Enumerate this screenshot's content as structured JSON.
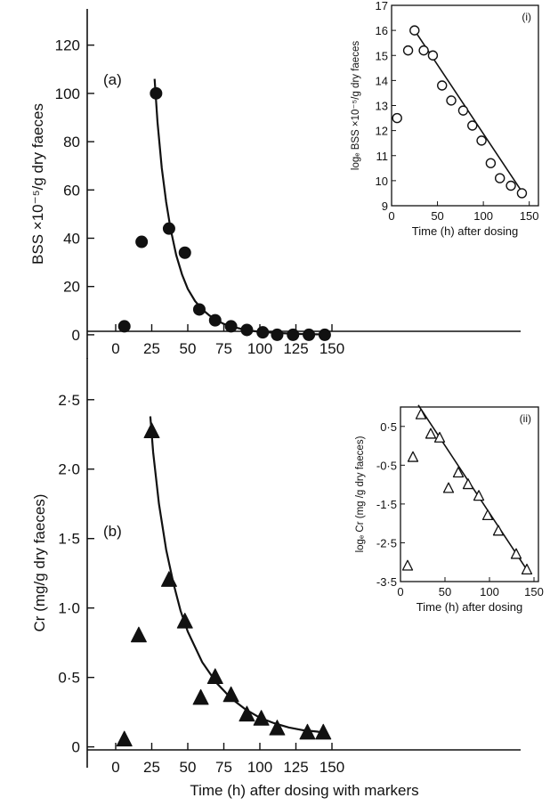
{
  "colors": {
    "ink": "#111111",
    "background": "#ffffff"
  },
  "xlabel": "Time (h) after dosing with markers",
  "chart_data": [
    {
      "id": "a",
      "panel_label": "(a)",
      "type": "scatter",
      "ylabel": "BSS ×10⁻⁵/g dry faeces",
      "xlim": [
        -10,
        155
      ],
      "ylim": [
        -10,
        135
      ],
      "xticks": [
        0,
        25,
        50,
        75,
        100,
        125,
        150
      ],
      "yticks": [
        0,
        20,
        40,
        60,
        80,
        100,
        120
      ],
      "marker": "filled-circle",
      "series": [
        {
          "x": [
            6,
            18,
            28,
            37,
            48,
            58,
            69,
            80,
            91,
            102,
            112,
            123,
            134,
            145
          ],
          "y": [
            3.5,
            38.5,
            100,
            44,
            34,
            10.5,
            6,
            3.5,
            2,
            1,
            0,
            0,
            0,
            0
          ]
        }
      ],
      "fit_curve": {
        "x": [
          27,
          29,
          32,
          35,
          38,
          42,
          46,
          50,
          55,
          60,
          65,
          70,
          75,
          80,
          90,
          100,
          110,
          120,
          130,
          140,
          148
        ],
        "y": [
          106,
          88,
          69,
          55,
          44,
          33,
          25,
          19,
          14,
          10.5,
          8,
          6,
          4.5,
          3.5,
          2,
          1.2,
          0.8,
          0.5,
          0.3,
          0.2,
          0.1
        ]
      }
    },
    {
      "id": "b",
      "panel_label": "(b)",
      "type": "scatter",
      "ylabel": "Cr (mg/g dry faeces)",
      "xlim": [
        -10,
        155
      ],
      "ylim": [
        -0.15,
        2.8
      ],
      "xticks": [
        0,
        25,
        50,
        75,
        100,
        125,
        150
      ],
      "yticks": [
        0,
        0.5,
        1.0,
        1.5,
        2.0,
        2.5
      ],
      "yticklabels": [
        "0",
        "0·5",
        "1·0",
        "1·5",
        "2·0",
        "2·5"
      ],
      "marker": "filled-triangle",
      "series": [
        {
          "x": [
            6,
            16,
            25,
            37,
            48,
            59,
            69,
            80,
            91,
            101,
            112,
            133,
            144
          ],
          "y": [
            0.05,
            0.8,
            2.27,
            1.2,
            0.9,
            0.35,
            0.5,
            0.37,
            0.23,
            0.2,
            0.13,
            0.1,
            0.1
          ]
        }
      ],
      "fit_curve": {
        "x": [
          24,
          26,
          30,
          35,
          40,
          45,
          50,
          60,
          70,
          80,
          90,
          100,
          110,
          120,
          130,
          140,
          145
        ],
        "y": [
          2.38,
          2.12,
          1.75,
          1.42,
          1.18,
          0.98,
          0.83,
          0.61,
          0.46,
          0.35,
          0.27,
          0.21,
          0.17,
          0.14,
          0.12,
          0.11,
          0.1
        ]
      }
    },
    {
      "id": "i",
      "panel_label": "(i)",
      "type": "scatter",
      "xlabel": "Time (h) after dosing",
      "ylabel": "logₑ BSS ×10⁻⁵/g dry faeces",
      "xlim": [
        0,
        160
      ],
      "ylim": [
        9,
        17
      ],
      "xticks": [
        0,
        50,
        100,
        150
      ],
      "xticklabels": [
        "0",
        "50",
        "100",
        "150"
      ],
      "yticks": [
        9,
        10,
        11,
        12,
        13,
        14,
        15,
        16,
        17
      ],
      "marker": "open-circle",
      "series": [
        {
          "x": [
            6,
            18,
            25,
            35,
            45,
            55,
            65,
            78,
            88,
            98,
            108,
            118,
            130,
            142
          ],
          "y": [
            12.5,
            15.2,
            16.0,
            15.2,
            15.0,
            13.8,
            13.2,
            12.8,
            12.2,
            11.6,
            10.7,
            10.1,
            9.8,
            9.5
          ]
        }
      ],
      "fit_line": {
        "x": [
          25,
          145
        ],
        "y": [
          16.0,
          9.4
        ]
      }
    },
    {
      "id": "ii",
      "panel_label": "(ii)",
      "type": "scatter",
      "xlabel": "Time (h) after dosing",
      "ylabel": "logₑ Cr (mg /g dry faeces)",
      "xlim": [
        0,
        155
      ],
      "ylim": [
        -3.5,
        1.0
      ],
      "xticks": [
        0,
        50,
        100,
        150
      ],
      "xticklabels": [
        "0",
        "50",
        "100",
        "150"
      ],
      "yticks": [
        0.5,
        -0.5,
        -1.5,
        -2.5,
        -3.5
      ],
      "yticklabels": [
        "0·5",
        "-0·5",
        "-1·5",
        "-2·5",
        "-3·5"
      ],
      "marker": "open-triangle",
      "series": [
        {
          "x": [
            8,
            14,
            23,
            34,
            44,
            54,
            65,
            76,
            88,
            98,
            110,
            130,
            142
          ],
          "y": [
            -3.1,
            -0.3,
            0.8,
            0.3,
            0.2,
            -1.1,
            -0.7,
            -1.0,
            -1.3,
            -1.8,
            -2.2,
            -2.8,
            -3.2
          ]
        }
      ],
      "fit_line": {
        "x": [
          20,
          145
        ],
        "y": [
          1.05,
          -3.3
        ]
      }
    }
  ]
}
